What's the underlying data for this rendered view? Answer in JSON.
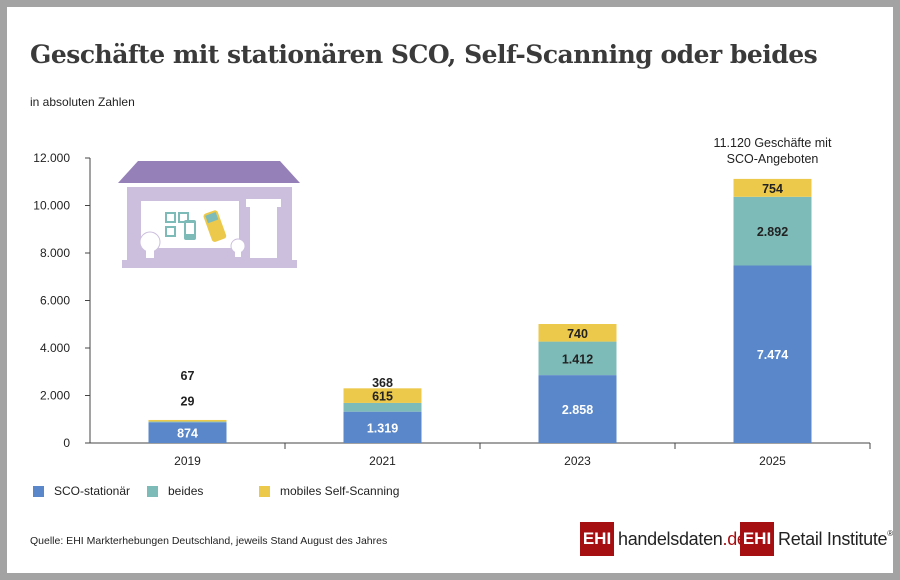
{
  "title": "Geschäfte mit stationären SCO, Self-Scanning oder beides",
  "subtitle": "in absoluten Zahlen",
  "source": "Quelle: EHI Markterhebungen Deutschland, jeweils Stand August des Jahres",
  "logos": {
    "ehi": "EHI",
    "handelsdaten": "handelsdaten",
    "handelsdaten_tld": ".de",
    "retail": "Retail Institute",
    "reg": "®"
  },
  "colors": {
    "sco": "#5a87c9",
    "beides": "#7dbbb8",
    "mobile": "#ecc94b",
    "roof": "#9580b8",
    "house": "#cbbfdd",
    "brand": "#a50f12"
  },
  "chart_data": {
    "type": "bar",
    "stacked": true,
    "categories": [
      "2019",
      "2021",
      "2023",
      "2025"
    ],
    "series": [
      {
        "name": "SCO-stationär",
        "values": [
          874,
          1319,
          2858,
          7474
        ],
        "labels": [
          "874",
          "1.319",
          "2.858",
          "7.474"
        ]
      },
      {
        "name": "beides",
        "values": [
          29,
          368,
          1412,
          2892
        ],
        "labels": [
          "29",
          "368",
          "1.412",
          "2.892"
        ]
      },
      {
        "name": "mobiles Self-Scanning",
        "values": [
          67,
          615,
          740,
          754
        ],
        "labels": [
          "67",
          "615",
          "740",
          "754"
        ]
      }
    ],
    "ylim": [
      0,
      12000
    ],
    "yticks": [
      0,
      2000,
      4000,
      6000,
      8000,
      10000,
      12000
    ],
    "ytick_labels": [
      "0",
      "2.000",
      "4.000",
      "6.000",
      "8.000",
      "10.000",
      "12.000"
    ],
    "annotation": [
      "11.120 Geschäfte mit",
      "SCO-Angeboten"
    ],
    "legend_position": "bottom-left",
    "grid": false
  }
}
